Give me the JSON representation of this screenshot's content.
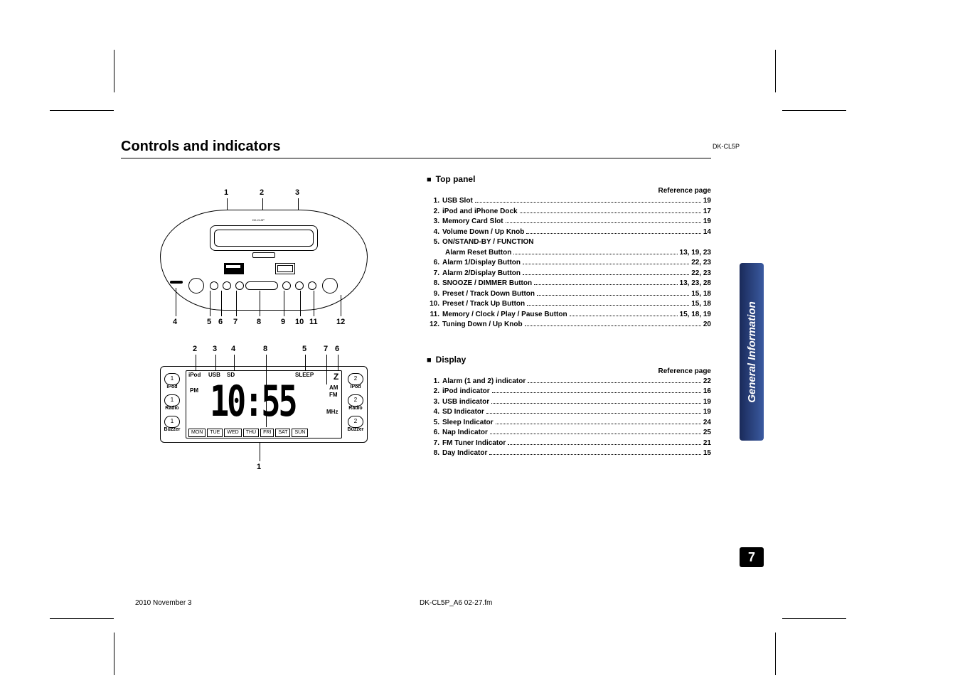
{
  "header": {
    "title": "Controls and indicators",
    "model": "DK-CL5P"
  },
  "sideTab": {
    "label": "General Information",
    "pageNumber": "7"
  },
  "footer": {
    "date": "2010 November 3",
    "file": "DK-CL5P_A6 02-27.fm"
  },
  "topPanel": {
    "heading": "Top panel",
    "referenceLabel": "Reference page",
    "items": [
      {
        "n": "1.",
        "label": "USB Slot",
        "page": "19"
      },
      {
        "n": "2.",
        "label": "iPod  and iPhone Dock",
        "page": "17"
      },
      {
        "n": "3.",
        "label": "Memory Card Slot",
        "page": "19"
      },
      {
        "n": "4.",
        "label": "Volume Down / Up Knob",
        "page": "14"
      },
      {
        "n": "5.",
        "label": "ON/STAND-BY / FUNCTION",
        "page": ""
      },
      {
        "n": "",
        "label": "Alarm Reset Button",
        "page": "13, 19, 23",
        "sub": true
      },
      {
        "n": "6.",
        "label": "Alarm 1/Display Button",
        "page": "22, 23"
      },
      {
        "n": "7.",
        "label": "Alarm 2/Display Button",
        "page": "22, 23"
      },
      {
        "n": "8.",
        "label": "SNOOZE / DIMMER Button",
        "page": "13, 23, 28"
      },
      {
        "n": "9.",
        "label": "Preset / Track Down Button",
        "page": "15, 18"
      },
      {
        "n": "10.",
        "label": "Preset / Track Up Button",
        "page": "15, 18"
      },
      {
        "n": "11.",
        "label": "Memory / Clock / Play / Pause Button",
        "page": "15, 18, 19"
      },
      {
        "n": "12.",
        "label": "Tuning Down / Up Knob",
        "page": " 20"
      }
    ]
  },
  "display": {
    "heading": "Display",
    "referenceLabel": "Reference page",
    "items": [
      {
        "n": "1.",
        "label": "Alarm (1 and 2) indicator",
        "page": "22"
      },
      {
        "n": "2.",
        "label": "iPod indicator",
        "page": "16"
      },
      {
        "n": "3.",
        "label": "USB indicator",
        "page": "19"
      },
      {
        "n": "4.",
        "label": "SD Indicator",
        "page": "19"
      },
      {
        "n": "5.",
        "label": "Sleep Indicator",
        "page": "24"
      },
      {
        "n": "6.",
        "label": "Nap Indicator",
        "page": "25"
      },
      {
        "n": "7.",
        "label": "FM Tuner Indicator",
        "page": "21"
      },
      {
        "n": "8.",
        "label": "Day Indicator",
        "page": "15"
      }
    ]
  },
  "diagramTop": {
    "modelText": "DK-CL5P",
    "callouts": [
      "1",
      "2",
      "3",
      "4",
      "5",
      "6",
      "7",
      "8",
      "9",
      "10",
      "11",
      "12"
    ]
  },
  "diagramDisplay": {
    "indicators": {
      "ipod": "iPod",
      "usb": "USB",
      "sd": "SD",
      "sleep": "SLEEP",
      "pm": "PM",
      "am": "AM",
      "fm": "FM",
      "mhz": "MHz",
      "nap": "Z"
    },
    "clock": "10:55",
    "alarms": [
      {
        "num": "1",
        "label": "iPod"
      },
      {
        "num": "1",
        "label": "Radio"
      },
      {
        "num": "1",
        "label": "Buzzer"
      },
      {
        "num": "2",
        "label": "iPod"
      },
      {
        "num": "2",
        "label": "Radio"
      },
      {
        "num": "2",
        "label": "Buzzer"
      }
    ],
    "days": [
      "MON",
      "TUE",
      "WED",
      "THU",
      "FRI",
      "SAT",
      "SUN"
    ],
    "callouts": [
      "1",
      "2",
      "3",
      "4",
      "5",
      "6",
      "7",
      "8"
    ]
  }
}
